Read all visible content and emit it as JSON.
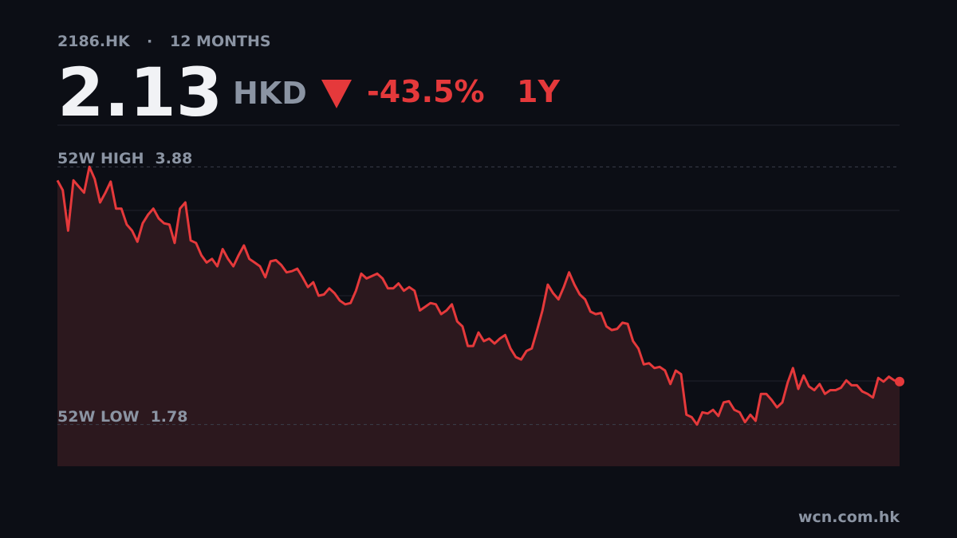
{
  "ticker": "2186.HK",
  "separator": "·",
  "period": "12 MONTHS",
  "price": 2.13,
  "currency": "HKD",
  "change": {
    "value": -43.5,
    "label": "-43.5%"
  },
  "range": "1Y",
  "source": "wcn.com.hk",
  "chart_data": {
    "type": "line",
    "color": "#e5393b",
    "ylim": [
      1.44,
      4.22
    ],
    "high": {
      "label": "52W HIGH",
      "value": 3.88
    },
    "low": {
      "label": "52W LOW",
      "value": 1.78
    },
    "values": [
      3.77,
      3.69,
      3.36,
      3.77,
      3.72,
      3.67,
      3.88,
      3.78,
      3.59,
      3.67,
      3.76,
      3.54,
      3.54,
      3.41,
      3.36,
      3.27,
      3.42,
      3.49,
      3.54,
      3.46,
      3.42,
      3.41,
      3.26,
      3.54,
      3.59,
      3.28,
      3.26,
      3.16,
      3.1,
      3.13,
      3.07,
      3.21,
      3.13,
      3.07,
      3.16,
      3.24,
      3.13,
      3.1,
      3.07,
      2.98,
      3.11,
      3.12,
      3.08,
      3.02,
      3.03,
      3.05,
      2.98,
      2.9,
      2.94,
      2.83,
      2.84,
      2.89,
      2.85,
      2.79,
      2.76,
      2.77,
      2.87,
      3.01,
      2.97,
      2.99,
      3.01,
      2.97,
      2.89,
      2.89,
      2.93,
      2.87,
      2.9,
      2.87,
      2.71,
      2.74,
      2.77,
      2.76,
      2.68,
      2.71,
      2.76,
      2.62,
      2.58,
      2.42,
      2.42,
      2.53,
      2.46,
      2.48,
      2.44,
      2.48,
      2.51,
      2.4,
      2.33,
      2.31,
      2.38,
      2.4,
      2.55,
      2.71,
      2.92,
      2.85,
      2.8,
      2.9,
      3.02,
      2.92,
      2.84,
      2.8,
      2.7,
      2.68,
      2.69,
      2.58,
      2.55,
      2.56,
      2.61,
      2.6,
      2.46,
      2.4,
      2.27,
      2.28,
      2.24,
      2.25,
      2.22,
      2.11,
      2.22,
      2.19,
      1.86,
      1.84,
      1.78,
      1.88,
      1.87,
      1.9,
      1.85,
      1.96,
      1.97,
      1.9,
      1.88,
      1.8,
      1.86,
      1.81,
      2.03,
      2.03,
      1.98,
      1.92,
      1.96,
      2.12,
      2.24,
      2.07,
      2.18,
      2.09,
      2.06,
      2.11,
      2.03,
      2.06,
      2.06,
      2.08,
      2.14,
      2.1,
      2.1,
      2.05,
      2.03,
      2.0,
      2.16,
      2.13,
      2.17,
      2.14,
      2.13
    ]
  }
}
